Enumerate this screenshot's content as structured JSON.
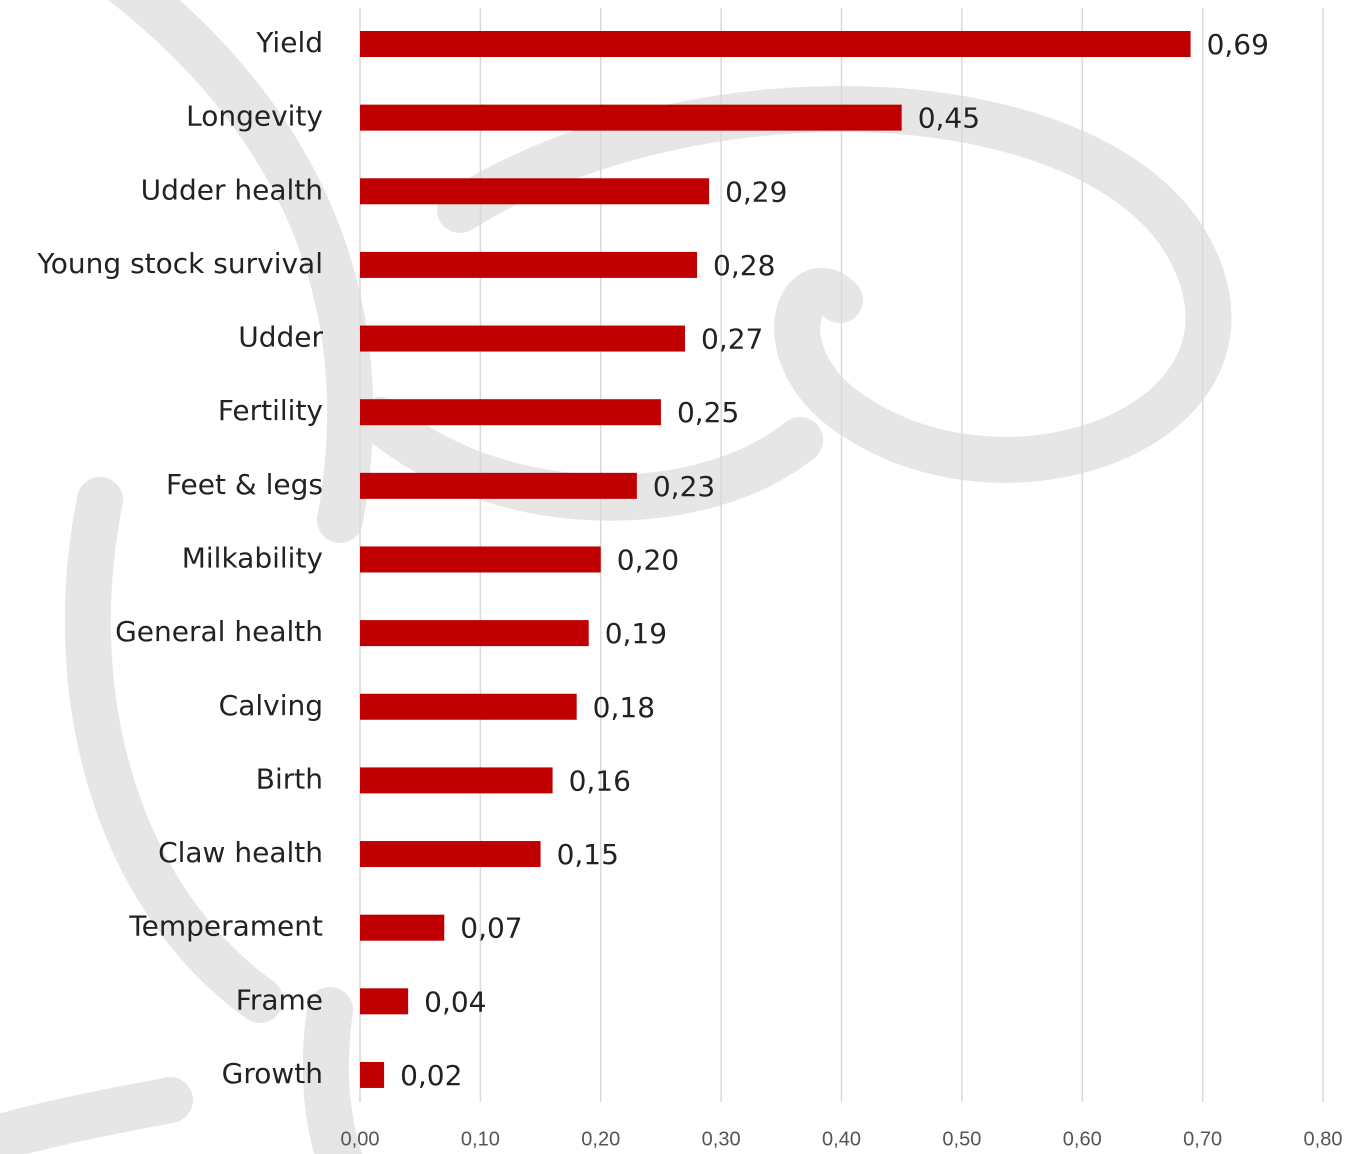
{
  "chart_data": {
    "type": "bar",
    "orientation": "horizontal",
    "categories": [
      "Yield",
      "Longevity",
      "Udder health",
      "Young stock survival",
      "Udder",
      "Fertility",
      "Feet & legs",
      "Milkability",
      "General health",
      "Calving",
      "Birth",
      "Claw health",
      "Temperament",
      "Frame",
      "Growth"
    ],
    "values": [
      0.69,
      0.45,
      0.29,
      0.28,
      0.27,
      0.25,
      0.23,
      0.2,
      0.19,
      0.18,
      0.16,
      0.15,
      0.07,
      0.04,
      0.02
    ],
    "value_labels": [
      "0,69",
      "0,45",
      "0,29",
      "0,28",
      "0,27",
      "0,25",
      "0,23",
      "0,20",
      "0,19",
      "0,18",
      "0,16",
      "0,15",
      "0,07",
      "0,04",
      "0,02"
    ],
    "color": "#c00000",
    "xlim": [
      0,
      0.8
    ],
    "xticks": [
      {
        "value": 0,
        "label": "0,00"
      },
      {
        "value": 0.1,
        "label": "0,10"
      },
      {
        "value": 0.2,
        "label": "0,20"
      },
      {
        "value": 0.3,
        "label": "0,30"
      },
      {
        "value": 0.4,
        "label": "0,40"
      },
      {
        "value": 0.5,
        "label": "0,50"
      },
      {
        "value": 0.6,
        "label": "0,60"
      },
      {
        "value": 0.7,
        "label": "0,70"
      },
      {
        "value": 0.8,
        "label": "0,80"
      }
    ],
    "grid": true
  }
}
